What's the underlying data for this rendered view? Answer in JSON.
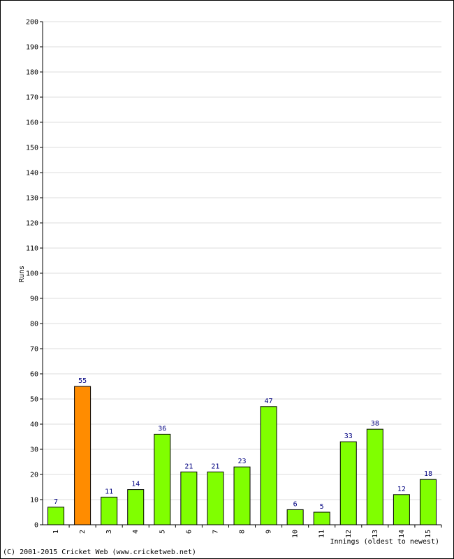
{
  "chart_data": {
    "type": "bar",
    "title": "",
    "xlabel": "Innings (oldest to newest)",
    "ylabel": "Runs",
    "ylim": [
      0,
      200
    ],
    "ytick_step": 10,
    "grid": true,
    "categories": [
      "1",
      "2",
      "3",
      "4",
      "5",
      "6",
      "7",
      "8",
      "9",
      "10",
      "11",
      "12",
      "13",
      "14",
      "15"
    ],
    "values": [
      7,
      55,
      11,
      14,
      36,
      21,
      21,
      23,
      47,
      6,
      5,
      33,
      38,
      12,
      18
    ],
    "highlight_index": 1,
    "colors": {
      "bar": "#80ff00",
      "highlight": "#ff8c00",
      "value_label": "#000080",
      "grid": "#dcdcdc"
    }
  },
  "footer": {
    "copyright": "(C) 2001-2015 Cricket Web (www.cricketweb.net)"
  }
}
